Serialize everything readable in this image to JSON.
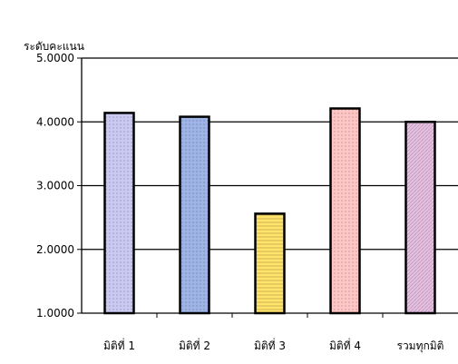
{
  "chart_data": {
    "type": "bar",
    "title": "",
    "xlabel": "",
    "ylabel": "ระดับคะแนน",
    "ylim": [
      1,
      5
    ],
    "yticks": [
      "1.0000",
      "2.0000",
      "3.0000",
      "4.0000",
      "5.0000"
    ],
    "grid": true,
    "legend": "none",
    "categories": [
      "มิติที่ 1",
      "มิติที่ 2",
      "มิติที่ 3",
      "มิติที่ 4",
      "รวมทุกมิติ"
    ],
    "values": [
      4.14,
      4.08,
      2.56,
      4.21,
      4.0
    ],
    "colors": [
      "#c9c9f2",
      "#9fb4e6",
      "#ffe36b",
      "#ffc6c6",
      "#e6bfe2"
    ]
  }
}
